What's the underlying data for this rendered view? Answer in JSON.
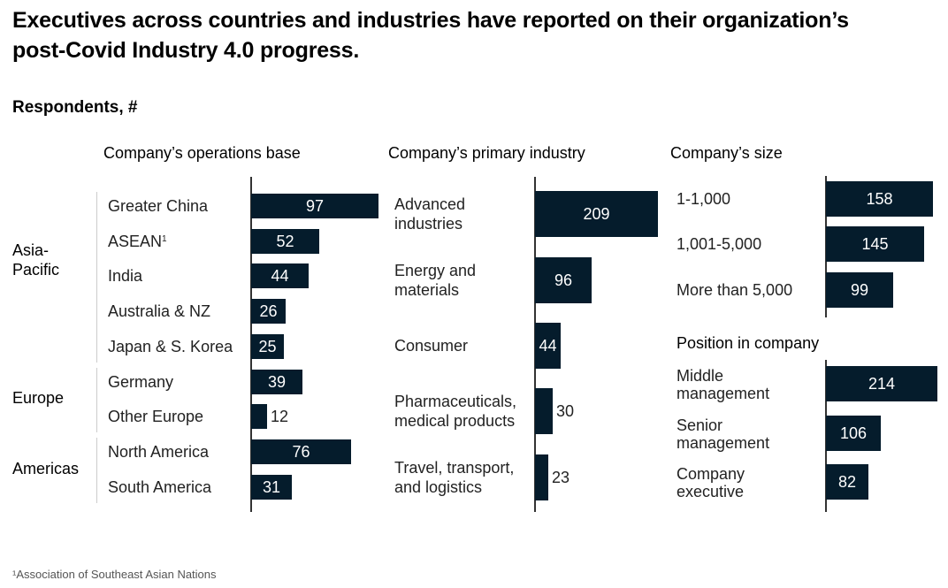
{
  "title": "Executives across countries and industries have reported on their organization’s post-Covid Industry 4.0 progress.",
  "subtitle": "Respondents, #",
  "footnote": "¹Association of Southeast Asian Nations",
  "colors": {
    "bar": "#051c2c",
    "axis": "#333333",
    "bracket": "#cccccc"
  },
  "chart_data": [
    {
      "type": "bar",
      "orientation": "horizontal",
      "title": "Company’s operations base",
      "groups": [
        {
          "name": "Asia-Pacific",
          "categories": [
            "Greater China",
            "ASEAN¹",
            "India",
            "Australia & NZ",
            "Japan & S. Korea"
          ]
        },
        {
          "name": "Europe",
          "categories": [
            "Germany",
            "Other Europe"
          ]
        },
        {
          "name": "Americas",
          "categories": [
            "North America",
            "South America"
          ]
        }
      ],
      "categories": [
        "Greater China",
        "ASEAN¹",
        "India",
        "Australia & NZ",
        "Japan & S. Korea",
        "Germany",
        "Other Europe",
        "North America",
        "South America"
      ],
      "values": [
        97,
        52,
        44,
        26,
        25,
        39,
        12,
        76,
        31
      ]
    },
    {
      "type": "bar",
      "orientation": "horizontal",
      "title": "Company’s primary industry",
      "categories": [
        "Advanced industries",
        "Energy and materials",
        "Consumer",
        "Pharmaceuticals, medical products",
        "Travel, transport, and logistics"
      ],
      "category_lines": [
        [
          "Advanced",
          "industries"
        ],
        [
          "Energy and",
          "materials"
        ],
        [
          "Consumer"
        ],
        [
          "Pharmaceuticals,",
          "medical products"
        ],
        [
          "Travel, transport,",
          "and logistics"
        ]
      ],
      "values": [
        209,
        96,
        44,
        30,
        23
      ]
    },
    {
      "type": "bar",
      "orientation": "horizontal",
      "title": "Company’s size",
      "categories": [
        "1-1,000",
        "1,001-5,000",
        "More than 5,000"
      ],
      "values": [
        158,
        145,
        99
      ]
    },
    {
      "type": "bar",
      "orientation": "horizontal",
      "title": "Position in company",
      "categories": [
        "Middle management",
        "Senior management",
        "Company executive"
      ],
      "category_lines": [
        [
          "Middle",
          "management"
        ],
        [
          "Senior",
          "management"
        ],
        [
          "Company",
          "executive"
        ]
      ],
      "values": [
        214,
        106,
        82
      ]
    }
  ]
}
